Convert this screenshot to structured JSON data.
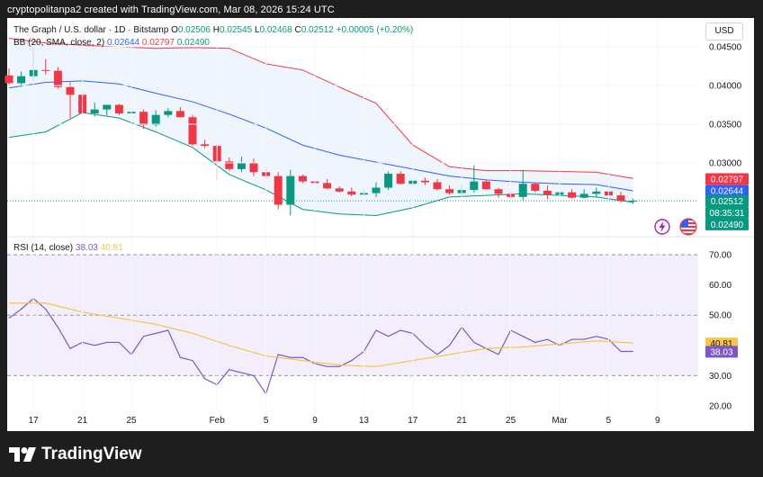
{
  "credit": "cryptopolitanpa2 created with TradingView.com, Mar 08, 2026 15:24 UTC",
  "brand": {
    "name": "TradingView",
    "icon": "tradingview-logo-icon"
  },
  "currency_button": "USD",
  "legend": {
    "symbol": "The Graph / U.S. dollar · 1D · Bitstamp",
    "o_label": "O",
    "o_value": "0.02506",
    "h_label": "H",
    "h_value": "0.02545",
    "l_label": "L",
    "l_value": "0.02468",
    "c_label": "C",
    "c_value": "0.02512",
    "change": "+0.00005 (+0.20%)",
    "bb_label": "BB (20, SMA, close, 2)",
    "bb_basis": "0.02644",
    "bb_upper": "0.02797",
    "bb_lower": "0.02490",
    "rsi_label": "RSI (14, close)",
    "rsi_value": "38.03",
    "rsi_ma": "40.81"
  },
  "header_icons": [
    "lightning-icon",
    "us-flag-icon"
  ],
  "colors": {
    "up": "#089981",
    "down": "#f23645",
    "bb_basis": "#2962ff",
    "bb_upper": "#f23645",
    "bb_lower": "#089981",
    "bb_fill": "#eef5fc",
    "rsi_line": "#7e57c2",
    "rsi_ma": "#f7c548",
    "rsi_band": "#f2eefb",
    "background_outer": "#1e1e1e",
    "panel": "#ffffff"
  },
  "chart_data": [
    {
      "type": "candlestick",
      "title": "The Graph / U.S. dollar · 1D · Bitstamp",
      "ylabel": "",
      "y_scale": "linear",
      "ylim": [
        0.0223,
        0.0461
      ],
      "y_ticks": [
        "0.04500",
        "0.04000",
        "0.03500",
        "0.03000"
      ],
      "x_ticks": [
        "17",
        "21",
        "25",
        "Feb",
        "5",
        "9",
        "13",
        "17",
        "21",
        "25",
        "Mar",
        "5",
        "9"
      ],
      "x_tick_days": [
        2,
        6,
        10,
        17,
        21,
        25,
        29,
        33,
        37,
        41,
        45,
        49,
        53
      ],
      "days_count": 54,
      "grid": true,
      "price_labels": [
        {
          "text": "0.02797",
          "value": 0.02797,
          "color": "#f23645"
        },
        {
          "text": "0.02644",
          "value": 0.02644,
          "color": "#2962ff"
        },
        {
          "text": "0.02512",
          "value": 0.02512,
          "color": "#089981"
        },
        {
          "text": "08:35:31",
          "value": 0.02512,
          "color": "#089981",
          "offset": 1
        },
        {
          "text": "0.02490",
          "value": 0.0249,
          "color": "#089981"
        }
      ],
      "candles": [
        {
          "t": 0,
          "o": 0.0413,
          "h": 0.0422,
          "l": 0.0401,
          "c": 0.0403
        },
        {
          "t": 1,
          "o": 0.0403,
          "h": 0.0418,
          "l": 0.0398,
          "c": 0.0412
        },
        {
          "t": 2,
          "o": 0.0412,
          "h": 0.0455,
          "l": 0.0405,
          "c": 0.042
        },
        {
          "t": 3,
          "o": 0.042,
          "h": 0.0434,
          "l": 0.0414,
          "c": 0.0419
        },
        {
          "t": 4,
          "o": 0.0419,
          "h": 0.0424,
          "l": 0.0396,
          "c": 0.0398
        },
        {
          "t": 5,
          "o": 0.0398,
          "h": 0.0404,
          "l": 0.0358,
          "c": 0.0388
        },
        {
          "t": 6,
          "o": 0.0388,
          "h": 0.0392,
          "l": 0.0364,
          "c": 0.0364
        },
        {
          "t": 7,
          "o": 0.0364,
          "h": 0.0378,
          "l": 0.036,
          "c": 0.0369
        },
        {
          "t": 8,
          "o": 0.0369,
          "h": 0.0375,
          "l": 0.0361,
          "c": 0.0375
        },
        {
          "t": 9,
          "o": 0.0375,
          "h": 0.0376,
          "l": 0.0362,
          "c": 0.0364
        },
        {
          "t": 10,
          "o": 0.0364,
          "h": 0.037,
          "l": 0.0361,
          "c": 0.0366
        },
        {
          "t": 11,
          "o": 0.0366,
          "h": 0.0369,
          "l": 0.0344,
          "c": 0.0349
        },
        {
          "t": 12,
          "o": 0.0349,
          "h": 0.0368,
          "l": 0.0347,
          "c": 0.0362
        },
        {
          "t": 13,
          "o": 0.0362,
          "h": 0.0371,
          "l": 0.0359,
          "c": 0.0367
        },
        {
          "t": 14,
          "o": 0.0367,
          "h": 0.0372,
          "l": 0.0359,
          "c": 0.0359
        },
        {
          "t": 15,
          "o": 0.0359,
          "h": 0.0362,
          "l": 0.0322,
          "c": 0.0324
        },
        {
          "t": 16,
          "o": 0.0324,
          "h": 0.033,
          "l": 0.0319,
          "c": 0.0322
        },
        {
          "t": 17,
          "o": 0.0322,
          "h": 0.0325,
          "l": 0.0278,
          "c": 0.0302
        },
        {
          "t": 18,
          "o": 0.0302,
          "h": 0.0307,
          "l": 0.029,
          "c": 0.0292
        },
        {
          "t": 19,
          "o": 0.0292,
          "h": 0.0308,
          "l": 0.0288,
          "c": 0.03
        },
        {
          "t": 20,
          "o": 0.03,
          "h": 0.0306,
          "l": 0.0283,
          "c": 0.0288
        },
        {
          "t": 21,
          "o": 0.0288,
          "h": 0.0295,
          "l": 0.028,
          "c": 0.0283
        },
        {
          "t": 22,
          "o": 0.0283,
          "h": 0.0288,
          "l": 0.024,
          "c": 0.0246
        },
        {
          "t": 23,
          "o": 0.0246,
          "h": 0.0291,
          "l": 0.0232,
          "c": 0.0283
        },
        {
          "t": 24,
          "o": 0.0283,
          "h": 0.0285,
          "l": 0.0274,
          "c": 0.0276
        },
        {
          "t": 25,
          "o": 0.0276,
          "h": 0.0279,
          "l": 0.0272,
          "c": 0.0274
        },
        {
          "t": 26,
          "o": 0.0274,
          "h": 0.0279,
          "l": 0.0266,
          "c": 0.0267
        },
        {
          "t": 27,
          "o": 0.0267,
          "h": 0.027,
          "l": 0.0262,
          "c": 0.0263
        },
        {
          "t": 28,
          "o": 0.0263,
          "h": 0.0268,
          "l": 0.0257,
          "c": 0.0259
        },
        {
          "t": 29,
          "o": 0.0259,
          "h": 0.0268,
          "l": 0.0257,
          "c": 0.0261
        },
        {
          "t": 30,
          "o": 0.0261,
          "h": 0.0275,
          "l": 0.0256,
          "c": 0.0268
        },
        {
          "t": 31,
          "o": 0.0268,
          "h": 0.0289,
          "l": 0.0265,
          "c": 0.0286
        },
        {
          "t": 32,
          "o": 0.0286,
          "h": 0.0289,
          "l": 0.0272,
          "c": 0.0273
        },
        {
          "t": 33,
          "o": 0.0273,
          "h": 0.0279,
          "l": 0.027,
          "c": 0.0277
        },
        {
          "t": 34,
          "o": 0.0277,
          "h": 0.0281,
          "l": 0.0271,
          "c": 0.0275
        },
        {
          "t": 35,
          "o": 0.0275,
          "h": 0.0279,
          "l": 0.0265,
          "c": 0.0266
        },
        {
          "t": 36,
          "o": 0.0266,
          "h": 0.0271,
          "l": 0.0259,
          "c": 0.0261
        },
        {
          "t": 37,
          "o": 0.0261,
          "h": 0.0272,
          "l": 0.0257,
          "c": 0.0265
        },
        {
          "t": 38,
          "o": 0.0265,
          "h": 0.0297,
          "l": 0.0262,
          "c": 0.0276
        },
        {
          "t": 39,
          "o": 0.0276,
          "h": 0.0278,
          "l": 0.0265,
          "c": 0.0266
        },
        {
          "t": 40,
          "o": 0.0266,
          "h": 0.0268,
          "l": 0.0255,
          "c": 0.026
        },
        {
          "t": 41,
          "o": 0.026,
          "h": 0.0264,
          "l": 0.0252,
          "c": 0.0256
        },
        {
          "t": 42,
          "o": 0.0256,
          "h": 0.0291,
          "l": 0.0252,
          "c": 0.0273
        },
        {
          "t": 43,
          "o": 0.0273,
          "h": 0.0275,
          "l": 0.0262,
          "c": 0.0264
        },
        {
          "t": 44,
          "o": 0.0264,
          "h": 0.0271,
          "l": 0.0253,
          "c": 0.0259
        },
        {
          "t": 45,
          "o": 0.0259,
          "h": 0.0268,
          "l": 0.0249,
          "c": 0.0262
        },
        {
          "t": 46,
          "o": 0.0262,
          "h": 0.0266,
          "l": 0.0254,
          "c": 0.0255
        },
        {
          "t": 47,
          "o": 0.0255,
          "h": 0.0266,
          "l": 0.0254,
          "c": 0.026
        },
        {
          "t": 48,
          "o": 0.026,
          "h": 0.0268,
          "l": 0.0255,
          "c": 0.0263
        },
        {
          "t": 49,
          "o": 0.0263,
          "h": 0.0266,
          "l": 0.0255,
          "c": 0.0258
        },
        {
          "t": 50,
          "o": 0.0258,
          "h": 0.0263,
          "l": 0.0249,
          "c": 0.0251
        },
        {
          "t": 51,
          "o": 0.0251,
          "h": 0.0254,
          "l": 0.0247,
          "c": 0.0251
        }
      ],
      "series": [
        {
          "role": "bb_upper",
          "x": [
            0,
            3,
            6,
            9,
            12,
            15,
            18,
            21,
            24,
            27,
            30,
            33,
            36,
            39,
            42,
            45,
            48,
            51
          ],
          "values": [
            0.0461,
            0.0455,
            0.0452,
            0.045,
            0.0448,
            0.0449,
            0.0448,
            0.0428,
            0.042,
            0.0398,
            0.0377,
            0.0323,
            0.0295,
            0.029,
            0.029,
            0.0289,
            0.0288,
            0.028
          ]
        },
        {
          "role": "bb_basis",
          "x": [
            0,
            3,
            6,
            9,
            12,
            15,
            18,
            21,
            24,
            27,
            30,
            33,
            36,
            39,
            42,
            45,
            48,
            51
          ],
          "values": [
            0.0397,
            0.0404,
            0.0406,
            0.0402,
            0.039,
            0.0379,
            0.0363,
            0.0345,
            0.0323,
            0.031,
            0.0301,
            0.0292,
            0.0283,
            0.0278,
            0.0275,
            0.0273,
            0.0272,
            0.0264
          ]
        },
        {
          "role": "bb_lower",
          "x": [
            0,
            3,
            6,
            9,
            12,
            15,
            18,
            21,
            24,
            27,
            30,
            33,
            36,
            39,
            42,
            45,
            48,
            51
          ],
          "values": [
            0.0333,
            0.034,
            0.0365,
            0.0358,
            0.034,
            0.032,
            0.0285,
            0.0265,
            0.024,
            0.0234,
            0.0232,
            0.0242,
            0.0256,
            0.0258,
            0.026,
            0.0258,
            0.0256,
            0.0249
          ]
        }
      ]
    },
    {
      "type": "line",
      "title": "RSI (14, close)",
      "ylim": [
        19,
        72
      ],
      "y_ticks": [
        "70.00",
        "60.00",
        "50.00",
        "40.00",
        "30.00",
        "20.00"
      ],
      "y_tick_values": [
        70,
        60,
        50,
        40,
        30,
        20
      ],
      "band": [
        30,
        70
      ],
      "guides": [
        70,
        50,
        30
      ],
      "labels": [
        {
          "text": "40.81",
          "value": 40.81,
          "color": "#f7c548",
          "text_color": "#131722"
        },
        {
          "text": "38.03",
          "value": 38.03,
          "color": "#7e57c2",
          "text_color": "#ffffff"
        }
      ],
      "series": [
        {
          "name": "RSI",
          "role": "rsi",
          "x": [
            0,
            1,
            2,
            3,
            4,
            5,
            6,
            7,
            8,
            9,
            10,
            11,
            12,
            13,
            14,
            15,
            16,
            17,
            18,
            19,
            20,
            21,
            22,
            23,
            24,
            25,
            26,
            27,
            28,
            29,
            30,
            31,
            32,
            33,
            34,
            35,
            36,
            37,
            38,
            39,
            40,
            41,
            42,
            43,
            44,
            45,
            46,
            47,
            48,
            49,
            50,
            51
          ],
          "values": [
            49,
            52,
            55.5,
            52,
            46,
            39,
            41,
            40,
            41,
            41,
            37,
            43,
            44,
            45,
            36,
            35,
            29,
            27,
            32,
            31,
            30,
            24,
            37,
            36,
            36,
            34,
            33,
            33,
            35,
            38,
            45,
            43,
            45,
            44,
            40,
            37,
            40,
            46,
            41,
            39,
            37,
            45,
            43,
            41,
            42,
            40,
            42,
            42,
            43,
            42,
            38,
            38
          ]
        },
        {
          "name": "RSI-based MA",
          "role": "rsi_ma",
          "x": [
            0,
            3,
            6,
            9,
            12,
            15,
            18,
            21,
            24,
            27,
            30,
            33,
            36,
            39,
            42,
            45,
            48,
            51
          ],
          "values": [
            54,
            54,
            51,
            49,
            47,
            44,
            40,
            36.5,
            35,
            33.5,
            33,
            35,
            37,
            39,
            39.5,
            40.5,
            41.5,
            40.8
          ]
        }
      ]
    }
  ]
}
